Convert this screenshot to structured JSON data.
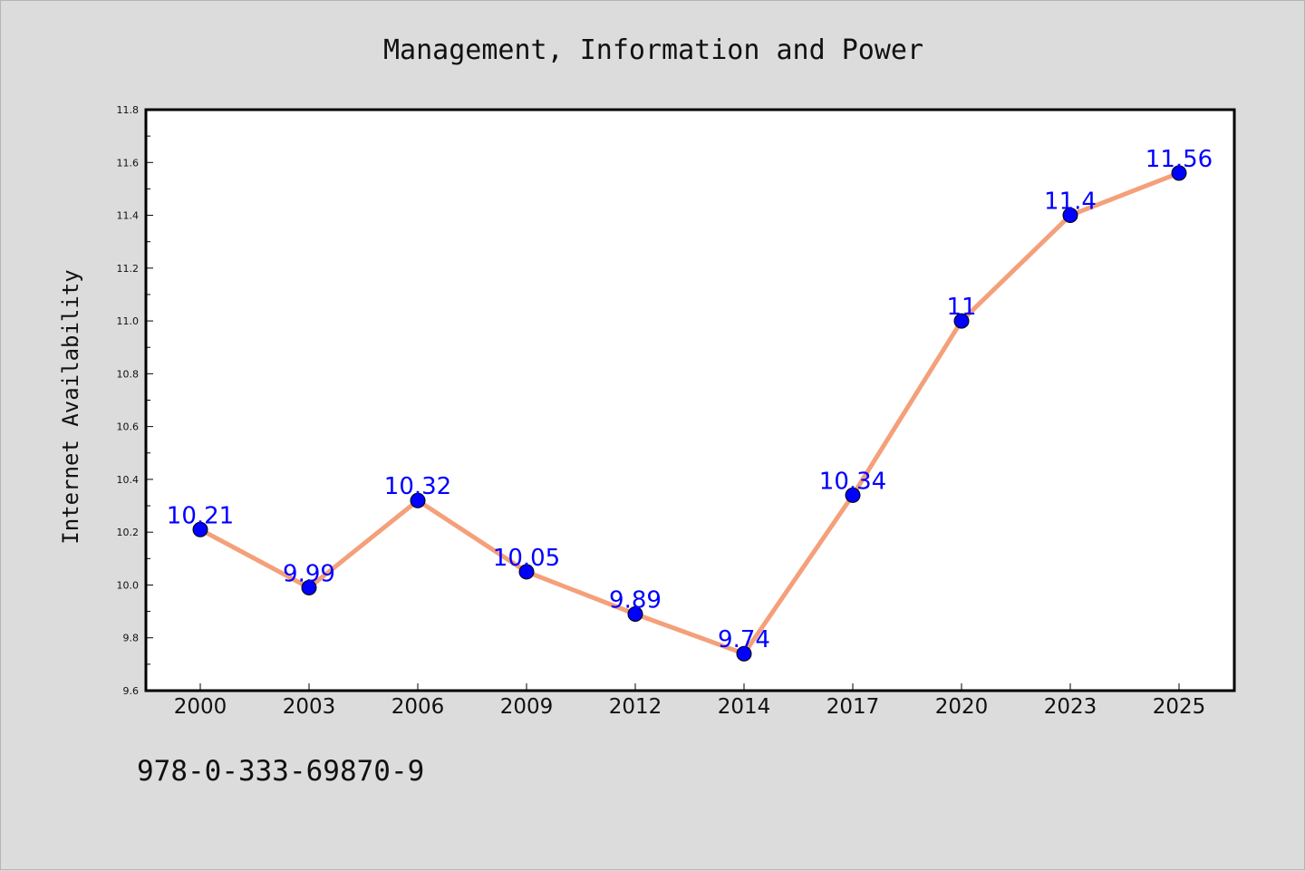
{
  "chart_data": {
    "type": "line",
    "title": "Management, Information and Power",
    "xlabel": "",
    "ylabel": "Internet Availability",
    "categories": [
      "2000",
      "2003",
      "2006",
      "2009",
      "2012",
      "2014",
      "2017",
      "2020",
      "2023",
      "2025"
    ],
    "series": [
      {
        "values": [
          10.21,
          9.99,
          10.32,
          10.05,
          9.89,
          9.74,
          10.34,
          11,
          11.4,
          11.56
        ],
        "labels": [
          "10.21",
          "9.99",
          "10.32",
          "10.05",
          "9.89",
          "9.74",
          "10.34",
          "11",
          "11.4",
          "11.56"
        ],
        "line_color": "#f4a07a",
        "marker_color": "#0000ff"
      }
    ],
    "ylim": [
      9.6,
      11.8
    ],
    "yticks": [
      "9.6",
      "9.8",
      "10.0",
      "10.2",
      "10.4",
      "10.6",
      "10.8",
      "11.0",
      "11.2",
      "11.4",
      "11.6",
      "11.8"
    ],
    "grid": false,
    "legend": "none"
  },
  "footer": {
    "isbn": "978-0-333-69870-9"
  },
  "colors": {
    "background": "#dcdcdc",
    "plot_background": "#ffffff",
    "label_color": "#0000ff"
  }
}
